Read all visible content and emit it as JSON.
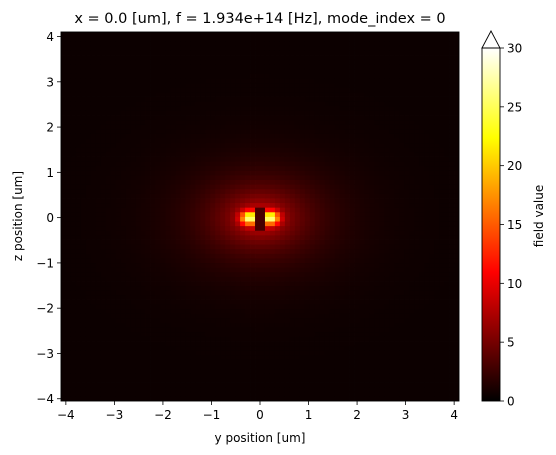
{
  "chart_data": {
    "type": "heatmap",
    "title": "x = 0.0 [um], f = 1.934e+14 [Hz], mode_index = 0",
    "xlabel": "y position [um]",
    "ylabel": "z position [um]",
    "xlim": [
      -4.1,
      4.1
    ],
    "ylim": [
      -4.05,
      4.1
    ],
    "x_ticks": [
      -4,
      -3,
      -2,
      -1,
      0,
      1,
      2,
      3,
      4
    ],
    "y_ticks": [
      -4,
      -3,
      -2,
      -1,
      0,
      1,
      2,
      3,
      4
    ],
    "x_tick_labels": [
      "−4",
      "−3",
      "−2",
      "−1",
      "0",
      "1",
      "2",
      "3",
      "4"
    ],
    "y_tick_labels": [
      "−4",
      "−3",
      "−2",
      "−1",
      "0",
      "1",
      "2",
      "3",
      "4"
    ],
    "colormap": "hot",
    "grid": false,
    "colorbar": {
      "label": "field value",
      "vmin": 0,
      "vmax": 30,
      "extend": "max",
      "ticks": [
        0,
        5,
        10,
        15,
        20,
        25,
        30
      ],
      "tick_labels": [
        "0",
        "5",
        "10",
        "15",
        "20",
        "25",
        "30"
      ]
    },
    "field": {
      "center": [
        0,
        0
      ],
      "peak_lobes": [
        {
          "y": -0.22,
          "z": 0,
          "value": 30
        },
        {
          "y": 0.22,
          "z": 0,
          "value": 30
        }
      ],
      "core": {
        "y_halfwidth": 0.1,
        "z_halfheight": 0.25,
        "value": 3
      },
      "decay_length_y": 0.75,
      "decay_length_z": 0.55,
      "far_field_value": 0.5
    }
  }
}
